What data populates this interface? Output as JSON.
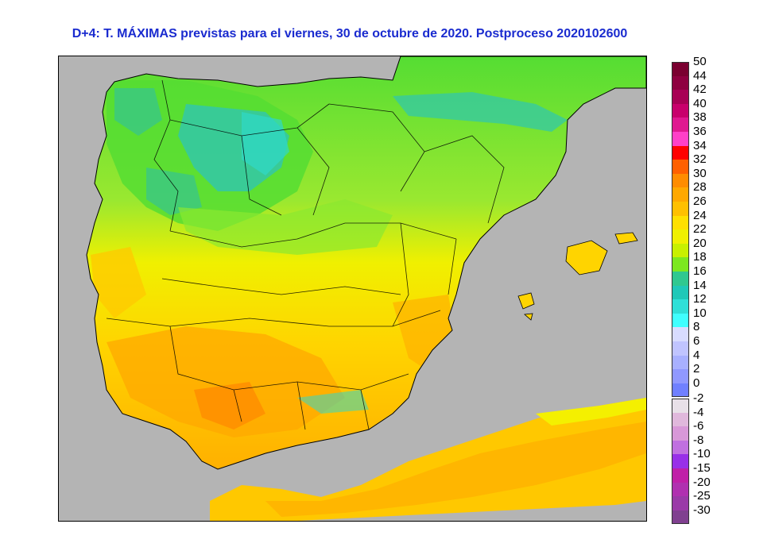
{
  "title": "D+4: T. MÁXIMAS previstas para el viernes, 30 de octubre de 2020. Postproceso 2020102600",
  "map": {
    "region": "Iberian Peninsula",
    "colors": {
      "sea": "#b4b4b4",
      "cool_green": "#55dd33",
      "teal": "#22c0a8",
      "cyan": "#2fd8c8",
      "yellow_green": "#ccf022",
      "yellow": "#f8f000",
      "gold": "#ffd400",
      "orange_light": "#ffc000",
      "orange": "#ffa000",
      "dark_orange": "#ff8000",
      "border": "#000000"
    }
  },
  "legend": {
    "upper": [
      {
        "label": "50",
        "color": "#7a0030"
      },
      {
        "label": "44",
        "color": "#8e0040"
      },
      {
        "label": "42",
        "color": "#a80055"
      },
      {
        "label": "40",
        "color": "#c8006c"
      },
      {
        "label": "38",
        "color": "#e01890"
      },
      {
        "label": "36",
        "color": "#ff40c8"
      },
      {
        "label": "34",
        "color": "#ff0000"
      },
      {
        "label": "32",
        "color": "#ff6000"
      },
      {
        "label": "30",
        "color": "#ff8c00"
      },
      {
        "label": "28",
        "color": "#ffa800"
      },
      {
        "label": "26",
        "color": "#ffc000"
      },
      {
        "label": "24",
        "color": "#ffe000"
      },
      {
        "label": "22",
        "color": "#f0f000"
      },
      {
        "label": "20",
        "color": "#c8f000"
      },
      {
        "label": "18",
        "color": "#7ce820"
      },
      {
        "label": "16",
        "color": "#30c890"
      },
      {
        "label": "14",
        "color": "#20c8b8"
      },
      {
        "label": "12",
        "color": "#30e0d8"
      },
      {
        "label": "10",
        "color": "#40ffff"
      },
      {
        "label": "8",
        "color": "#d8dcff"
      },
      {
        "label": "6",
        "color": "#c0c4ff"
      },
      {
        "label": "4",
        "color": "#a8b0ff"
      },
      {
        "label": "2",
        "color": "#9098ff"
      },
      {
        "label": "0",
        "color": "#7080ff"
      }
    ],
    "lower": [
      {
        "label": "-2",
        "color": "#e8e0e8"
      },
      {
        "label": "-4",
        "color": "#e0b8dc"
      },
      {
        "label": "-6",
        "color": "#d898d8"
      },
      {
        "label": "-8",
        "color": "#c070e0"
      },
      {
        "label": "-10",
        "color": "#9830e8"
      },
      {
        "label": "-15",
        "color": "#c020a8"
      },
      {
        "label": "-20",
        "color": "#b030b0"
      },
      {
        "label": "-25",
        "color": "#9a3aa8"
      },
      {
        "label": "-30",
        "color": "#804090"
      }
    ],
    "bottom_label_note": "-30"
  }
}
